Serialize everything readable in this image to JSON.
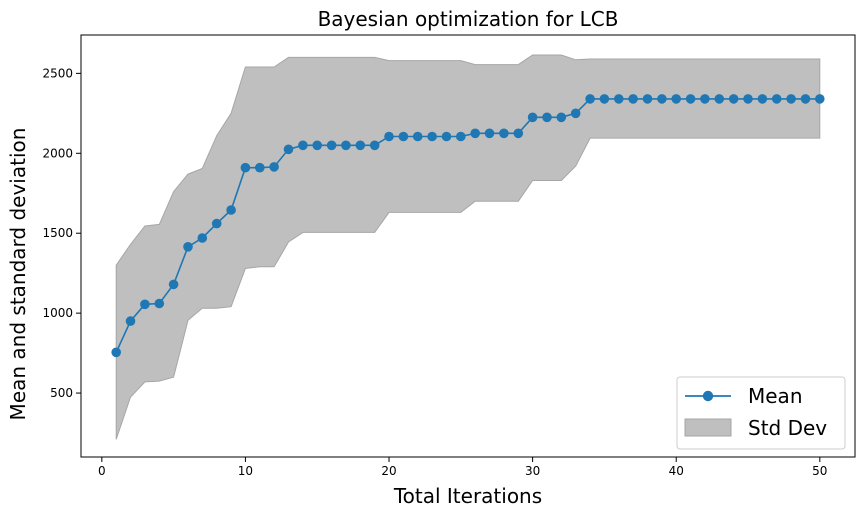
{
  "chart_data": {
    "type": "line",
    "title": "Bayesian optimization for LCB",
    "xlabel": "Total Iterations",
    "ylabel": "Mean and standard deviation",
    "xlim": [
      -1.45,
      52.45
    ],
    "ylim": [
      100,
      2740
    ],
    "x_ticks": [
      0,
      10,
      20,
      30,
      40,
      50
    ],
    "y_ticks": [
      500,
      1000,
      1500,
      2000,
      2500
    ],
    "grid": false,
    "legend_position": "lower-right",
    "series": [
      {
        "name": "Mean",
        "color": "#1f77b4",
        "marker": "circle",
        "x": [
          1,
          2,
          3,
          4,
          5,
          6,
          7,
          8,
          9,
          10,
          11,
          12,
          13,
          14,
          15,
          16,
          17,
          18,
          19,
          20,
          21,
          22,
          23,
          24,
          25,
          26,
          27,
          28,
          29,
          30,
          31,
          32,
          33,
          34,
          35,
          36,
          37,
          38,
          39,
          40,
          41,
          42,
          43,
          44,
          45,
          46,
          47,
          48,
          49,
          50
        ],
        "values": [
          755,
          950,
          1055,
          1060,
          1180,
          1415,
          1470,
          1560,
          1645,
          1910,
          1910,
          1915,
          2025,
          2050,
          2050,
          2050,
          2050,
          2050,
          2050,
          2105,
          2105,
          2105,
          2105,
          2105,
          2105,
          2125,
          2125,
          2125,
          2125,
          2225,
          2225,
          2225,
          2250,
          2340,
          2340,
          2340,
          2340,
          2340,
          2340,
          2340,
          2340,
          2340,
          2340,
          2340,
          2340,
          2340,
          2340,
          2340,
          2340,
          2340
        ]
      }
    ],
    "band": {
      "name": "Std Dev",
      "color": "#bfbfbf",
      "edge_color": "#a6a6a6",
      "lower": [
        210,
        475,
        570,
        575,
        600,
        955,
        1030,
        1030,
        1040,
        1280,
        1290,
        1290,
        1445,
        1505,
        1505,
        1505,
        1505,
        1505,
        1505,
        1630,
        1630,
        1630,
        1630,
        1630,
        1630,
        1700,
        1700,
        1700,
        1700,
        1830,
        1830,
        1830,
        1920,
        2095,
        2095,
        2095,
        2095,
        2095,
        2095,
        2095,
        2095,
        2095,
        2095,
        2095,
        2095,
        2095,
        2095,
        2095,
        2095,
        2095
      ],
      "upper": [
        1300,
        1430,
        1545,
        1555,
        1760,
        1870,
        1905,
        2110,
        2250,
        2540,
        2540,
        2540,
        2600,
        2600,
        2600,
        2600,
        2600,
        2600,
        2600,
        2580,
        2580,
        2580,
        2580,
        2580,
        2580,
        2555,
        2555,
        2555,
        2555,
        2615,
        2615,
        2615,
        2585,
        2590,
        2590,
        2590,
        2590,
        2590,
        2590,
        2590,
        2590,
        2590,
        2590,
        2590,
        2590,
        2590,
        2590,
        2590,
        2590,
        2590
      ]
    }
  }
}
